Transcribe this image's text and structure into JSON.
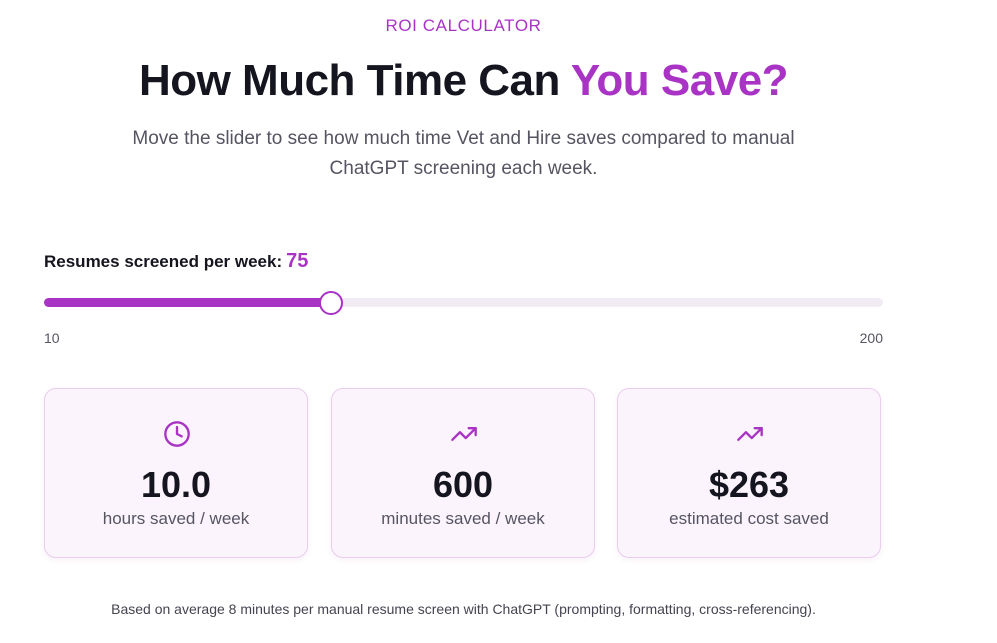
{
  "header": {
    "eyebrow": "ROI CALCULATOR",
    "title": "How Much Time Can ",
    "title_highlight": "You Save?",
    "description": "Move the slider to see how much time Vet and Hire saves compared to manual ChatGPT screening each week."
  },
  "slider": {
    "label": "Resumes screened per week:",
    "value": 75,
    "min": 10,
    "max": 200
  },
  "cards": [
    {
      "icon": "clock",
      "value": "10.0",
      "label": "hours saved / week"
    },
    {
      "icon": "trend",
      "value": "600",
      "label": "minutes saved / week"
    },
    {
      "icon": "trend",
      "value": "$263",
      "label": "estimated cost saved"
    }
  ],
  "footnote": "Based on average 8 minutes per manual resume screen with ChatGPT (prompting, formatting, cross-referencing)."
}
